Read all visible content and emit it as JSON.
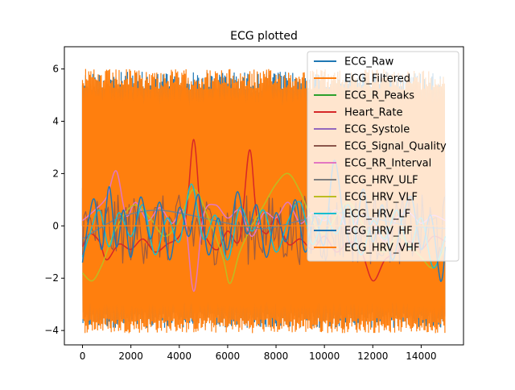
{
  "chart_data": {
    "type": "line",
    "title": "ECG plotted",
    "xlabel": "",
    "ylabel": "",
    "xlim": [
      -750,
      15750
    ],
    "ylim": [
      -4.55,
      6.85
    ],
    "xticks": [
      0,
      2000,
      4000,
      6000,
      8000,
      10000,
      12000,
      14000
    ],
    "yticks": [
      -4,
      -2,
      0,
      2,
      4,
      6
    ],
    "grid": false,
    "legend_position": "top-right",
    "series": [
      {
        "name": "ECG_Raw",
        "color": "#1f77b4",
        "pattern": "ecg",
        "amplitude": [
          -3.9,
          5.9
        ],
        "x": [
          0,
          15000
        ],
        "y": [
          -3.9,
          5.9
        ]
      },
      {
        "name": "ECG_Filtered",
        "color": "#ff7f0e",
        "pattern": "ecg",
        "amplitude": [
          -4.1,
          6.0
        ],
        "x": [
          0,
          15000
        ],
        "y": [
          -4.1,
          6.0
        ]
      },
      {
        "name": "ECG_R_Peaks",
        "color": "#2ca02c",
        "pattern": "flat",
        "x": [
          0,
          15000
        ],
        "y": [
          0,
          0
        ]
      },
      {
        "name": "Heart_Rate",
        "color": "#d62728",
        "pattern": "line",
        "x": [
          0,
          300,
          700,
          1000,
          1500,
          2000,
          2500,
          3000,
          3500,
          4000,
          4300,
          4600,
          4900,
          5200,
          5600,
          6000,
          6500,
          6900,
          7200,
          7600,
          8000,
          8500,
          9000,
          9500,
          10000,
          10500,
          11000,
          11500,
          12000,
          12500,
          13000,
          13500,
          14000,
          14500,
          15000
        ],
        "y": [
          -0.8,
          -0.3,
          -0.6,
          -1.3,
          -0.7,
          -0.9,
          -0.5,
          -1.0,
          -0.7,
          -0.4,
          0.5,
          3.3,
          0.3,
          -0.6,
          -0.9,
          -0.2,
          -0.5,
          2.9,
          0.4,
          -0.3,
          0.3,
          -0.7,
          -0.5,
          -0.9,
          -0.4,
          -1.0,
          -0.6,
          -0.9,
          -2.1,
          -1.3,
          -1.0,
          -0.6,
          -0.9,
          -0.4,
          -0.6
        ]
      },
      {
        "name": "ECG_Systole",
        "color": "#9467bd",
        "pattern": "band",
        "amplitude": [
          -0.75,
          1.45
        ],
        "x": [
          0,
          15000
        ],
        "y": [
          -0.75,
          1.45
        ]
      },
      {
        "name": "ECG_Signal_Quality",
        "color": "#8c564b",
        "pattern": "noise",
        "x": [
          0,
          15000
        ],
        "y": [
          -1.5,
          1.2
        ]
      },
      {
        "name": "ECG_RR_Interval",
        "color": "#e377c2",
        "pattern": "line",
        "x": [
          0,
          500,
          1000,
          1400,
          1800,
          2200,
          2700,
          3200,
          3700,
          4200,
          4600,
          5000,
          5500,
          6000,
          6500,
          7000,
          7500,
          8000,
          8500,
          9000,
          9500,
          10000,
          10500,
          11000,
          11500,
          12000,
          12500,
          13000,
          13500,
          14000,
          14500,
          15000
        ],
        "y": [
          0.2,
          0.6,
          1.1,
          2.1,
          0.4,
          0.9,
          0.2,
          0.7,
          0.1,
          0.5,
          -2.5,
          0.4,
          0.8,
          0.3,
          0.6,
          -0.4,
          0.5,
          0.3,
          0.9,
          0.1,
          0.5,
          0.2,
          0.6,
          -0.2,
          0.4,
          0.1,
          -0.6,
          0.3,
          0.5,
          0.1,
          0.4,
          0.2
        ]
      },
      {
        "name": "ECG_HRV_ULF",
        "color": "#7f7f7f",
        "pattern": "line",
        "x": [
          0,
          1500,
          3000,
          4500,
          6000,
          7500,
          9000,
          10500,
          12000,
          13500,
          15000
        ],
        "y": [
          -0.5,
          0.3,
          0.6,
          0.4,
          0.1,
          -0.1,
          0.2,
          0.5,
          0.3,
          0.0,
          -0.1
        ]
      },
      {
        "name": "ECG_HRV_VLF",
        "color": "#bcbd22",
        "pattern": "line",
        "x": [
          0,
          400,
          800,
          1200,
          1700,
          2200,
          2800,
          3400,
          4000,
          4600,
          5200,
          5800,
          6100,
          6500,
          7000,
          7500,
          8000,
          8500,
          9000,
          9500,
          10000,
          10500,
          11000,
          11500,
          12000,
          12500,
          13000,
          13500,
          14000,
          14500,
          15000
        ],
        "y": [
          -1.8,
          -2.1,
          -1.5,
          -0.5,
          0.4,
          0.8,
          0.3,
          -0.4,
          0.2,
          1.4,
          0.3,
          -1.2,
          -2.2,
          -1.0,
          0.0,
          0.8,
          1.6,
          2.0,
          1.3,
          0.2,
          -0.3,
          0.4,
          0.9,
          0.2,
          -0.6,
          -1.0,
          -0.4,
          -0.7,
          -1.2,
          -1.6,
          -0.8
        ]
      },
      {
        "name": "ECG_HRV_LF",
        "color": "#17becf",
        "pattern": "line",
        "x": [
          0,
          300,
          700,
          1100,
          1500,
          2000,
          2500,
          3000,
          3500,
          4000,
          4500,
          5000,
          5500,
          6000,
          6500,
          7000,
          7500,
          8000,
          8500,
          9000,
          9500,
          10000,
          10500,
          11000,
          11500,
          12000,
          12500,
          13000,
          13500,
          14000,
          14500,
          15000
        ],
        "y": [
          -1.2,
          -0.3,
          0.6,
          -0.8,
          0.5,
          -0.4,
          0.8,
          -1.1,
          0.3,
          -0.6,
          1.6,
          -0.5,
          0.4,
          -1.3,
          0.7,
          -0.2,
          0.6,
          -1.0,
          0.2,
          0.9,
          -0.7,
          0.4,
          -0.3,
          0.8,
          -1.1,
          0.2,
          -0.5,
          0.6,
          -0.9,
          0.3,
          -1.6,
          -0.4
        ]
      },
      {
        "name": "ECG_HRV_HF",
        "color": "#1f77b4",
        "pattern": "line",
        "x": [
          0,
          250,
          500,
          800,
          1100,
          1400,
          1700,
          2000,
          2400,
          2800,
          3200,
          3600,
          4000,
          4400,
          4800,
          5200,
          5600,
          6000,
          6400,
          6800,
          7200,
          7600,
          8000,
          8400,
          8800,
          9200,
          9600,
          10000,
          10400,
          10800,
          11200,
          11600,
          12000,
          12400,
          12800,
          13200,
          13600,
          14000,
          14400,
          14800,
          15000
        ],
        "y": [
          -1.4,
          0.2,
          1.0,
          -0.9,
          1.5,
          -0.8,
          0.6,
          -1.2,
          1.1,
          -0.5,
          0.9,
          -1.3,
          0.7,
          -0.4,
          1.2,
          -1.1,
          0.3,
          -0.9,
          1.3,
          -0.3,
          0.8,
          -1.2,
          0.5,
          -0.6,
          1.0,
          -1.0,
          0.4,
          -0.7,
          2.5,
          0.3,
          -0.8,
          1.4,
          -0.6,
          0.8,
          -1.3,
          0.2,
          1.1,
          -0.9,
          0.4,
          -2.1,
          -0.8
        ]
      },
      {
        "name": "ECG_HRV_VHF",
        "color": "#ff7f0e",
        "pattern": "line",
        "x": [
          0,
          15000
        ],
        "y": [
          0.0,
          0.0
        ]
      }
    ]
  }
}
